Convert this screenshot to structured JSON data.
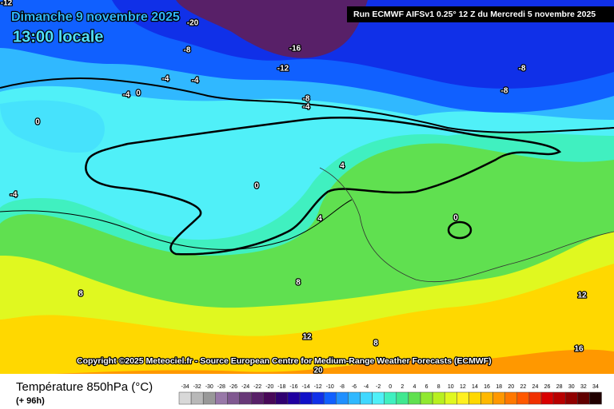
{
  "header": {
    "title": "Dimanche 9 novembre 2025",
    "subtitle": "13:00 locale",
    "run": "Run ECMWF AIFSv1 0.25° 12 Z du Mercredi 5 novembre 2025"
  },
  "map": {
    "contour_labels": [
      -12,
      -20,
      -8,
      -16,
      -12,
      -4,
      -4,
      -4,
      0,
      0,
      -8,
      -4,
      -8,
      -8,
      0,
      4,
      4,
      0,
      8,
      8,
      12,
      8,
      16,
      20,
      12,
      -4
    ],
    "copyright": "Copyright ©2025 Meteociel.fr - Source European Centre for Medium-Range Weather Forecasts (ECMWF)"
  },
  "legend": {
    "title": "Température 850hPa (°C)",
    "lead": "(+ 96h)",
    "scale": [
      {
        "value": -34,
        "color": "#d8d8d8"
      },
      {
        "value": -32,
        "color": "#b8b8b8"
      },
      {
        "value": -30,
        "color": "#989898"
      },
      {
        "value": -28,
        "color": "#9878a8"
      },
      {
        "value": -26,
        "color": "#805890"
      },
      {
        "value": -24,
        "color": "#683878"
      },
      {
        "value": -22,
        "color": "#582068"
      },
      {
        "value": -20,
        "color": "#480858"
      },
      {
        "value": -18,
        "color": "#300070"
      },
      {
        "value": -16,
        "color": "#2000a0"
      },
      {
        "value": -14,
        "color": "#1010c8"
      },
      {
        "value": -12,
        "color": "#1030e8"
      },
      {
        "value": -10,
        "color": "#1060ff"
      },
      {
        "value": -8,
        "color": "#2090ff"
      },
      {
        "value": -6,
        "color": "#30b8ff"
      },
      {
        "value": -4,
        "color": "#40d8ff"
      },
      {
        "value": -2,
        "color": "#50f0f8"
      },
      {
        "value": 0,
        "color": "#40f0c0"
      },
      {
        "value": 2,
        "color": "#40e890"
      },
      {
        "value": 4,
        "color": "#60e050"
      },
      {
        "value": 6,
        "color": "#90e830"
      },
      {
        "value": 8,
        "color": "#b8f020"
      },
      {
        "value": 10,
        "color": "#e0f820"
      },
      {
        "value": 12,
        "color": "#fff020"
      },
      {
        "value": 14,
        "color": "#ffd800"
      },
      {
        "value": 16,
        "color": "#ffb800"
      },
      {
        "value": 18,
        "color": "#ff9800"
      },
      {
        "value": 20,
        "color": "#ff7800"
      },
      {
        "value": 22,
        "color": "#ff5800"
      },
      {
        "value": 24,
        "color": "#f03000"
      },
      {
        "value": 26,
        "color": "#d80000"
      },
      {
        "value": 28,
        "color": "#b80000"
      },
      {
        "value": 30,
        "color": "#900000"
      },
      {
        "value": 32,
        "color": "#600000"
      },
      {
        "value": 34,
        "color": "#200000"
      }
    ]
  }
}
